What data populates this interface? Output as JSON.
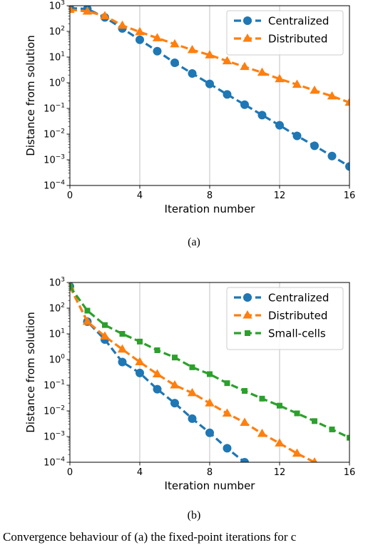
{
  "chart_data": [
    {
      "type": "line",
      "panel_label": "(a)",
      "xlabel": "Iteration number",
      "ylabel": "Distance from solution",
      "xlim": [
        0,
        16
      ],
      "ylim": [
        0.0001,
        1000
      ],
      "yscale": "log",
      "xticks": [
        "0",
        "4",
        "8",
        "12",
        "16"
      ],
      "grid": "vertical",
      "legend_position": "top-right",
      "series": [
        {
          "name": "Centralized",
          "color": "#1f77b4",
          "marker": "circle",
          "linestyle": "dashed",
          "x": [
            0,
            1,
            2,
            3,
            4,
            5,
            6,
            7,
            8,
            9,
            10,
            11,
            12,
            13,
            14,
            15,
            16
          ],
          "y": [
            800,
            750,
            350,
            130,
            47,
            17,
            6,
            2.3,
            0.9,
            0.35,
            0.14,
            0.055,
            0.022,
            0.0085,
            0.0035,
            0.0014,
            0.00055
          ]
        },
        {
          "name": "Distributed",
          "color": "#ff7f0e",
          "marker": "triangle",
          "linestyle": "dashed",
          "x": [
            0,
            1,
            2,
            3,
            4,
            5,
            6,
            7,
            8,
            9,
            10,
            11,
            12,
            13,
            14,
            15,
            16
          ],
          "y": [
            700,
            600,
            400,
            170,
            95,
            55,
            32,
            19,
            12,
            7,
            4.2,
            2.5,
            1.4,
            0.85,
            0.5,
            0.3,
            0.17
          ]
        }
      ]
    },
    {
      "type": "line",
      "panel_label": "(b)",
      "xlabel": "Iteration number",
      "ylabel": "Distance from solution",
      "xlim": [
        0,
        16
      ],
      "ylim": [
        0.0001,
        1000
      ],
      "yscale": "log",
      "xticks": [
        "0",
        "4",
        "8",
        "12",
        "16"
      ],
      "grid": "vertical",
      "legend_position": "top-right",
      "series": [
        {
          "name": "Centralized",
          "color": "#1f77b4",
          "marker": "circle",
          "linestyle": "dashed",
          "x": [
            0,
            1,
            2,
            3,
            4,
            5,
            6,
            7,
            8,
            9,
            10
          ],
          "y": [
            700,
            30,
            6,
            0.8,
            0.3,
            0.07,
            0.02,
            0.005,
            0.0014,
            0.00035,
            0.0001
          ]
        },
        {
          "name": "Distributed",
          "color": "#ff7f0e",
          "marker": "triangle",
          "linestyle": "dashed",
          "x": [
            0,
            1,
            2,
            3,
            4,
            5,
            6,
            7,
            8,
            9,
            10,
            11,
            12,
            13,
            14
          ],
          "y": [
            700,
            30,
            8,
            2.5,
            0.8,
            0.27,
            0.1,
            0.05,
            0.02,
            0.008,
            0.0035,
            0.0013,
            0.00055,
            0.00022,
            0.0001
          ]
        },
        {
          "name": "Small-cells",
          "color": "#2ca02c",
          "marker": "square",
          "linestyle": "dashed",
          "x": [
            0,
            1,
            2,
            3,
            4,
            5,
            6,
            7,
            8,
            9,
            10,
            11,
            12,
            13,
            14,
            15,
            16
          ],
          "y": [
            700,
            80,
            22,
            10,
            5,
            2.3,
            1.2,
            0.5,
            0.27,
            0.12,
            0.06,
            0.03,
            0.016,
            0.008,
            0.004,
            0.0019,
            0.0009
          ]
        }
      ]
    }
  ],
  "caption_fragment": "Convergence behaviour of (a) the fixed-point iterations for c"
}
